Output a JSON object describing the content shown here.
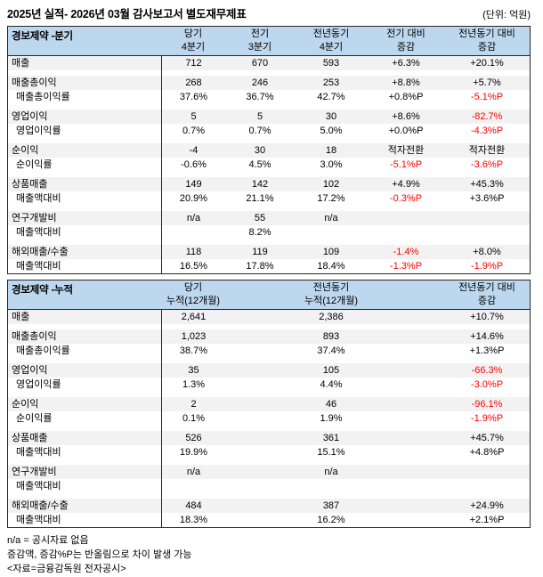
{
  "title": "2025년 실적- 2026년 03월 감사보고서 별도재무제표",
  "unit_label": "(단위: 억원)",
  "colors": {
    "header_bg": "#BDD7EE",
    "shaded_row_bg": "#F2F2F2",
    "negative_text": "#FF0000",
    "border": "#262626"
  },
  "quarterly_table": {
    "corner_label": "경보제약 -분기",
    "grid_slots": [
      0,
      1,
      2,
      3,
      4
    ],
    "column_headers": [
      {
        "line1": "당기",
        "line2": "4분기"
      },
      {
        "line1": "전기",
        "line2": "3분기"
      },
      {
        "line1": "전년동기",
        "line2": "4분기"
      },
      {
        "line1": "전기 대비",
        "line2": "증감"
      },
      {
        "line1": "전년동기 대비",
        "line2": "증감"
      }
    ],
    "groups": [
      [
        {
          "label": "매출",
          "sub": false,
          "cells": [
            "712",
            "670",
            "593",
            "+6.3%",
            "+20.1%"
          ],
          "neg": []
        }
      ],
      [
        {
          "label": "매출총이익",
          "sub": false,
          "cells": [
            "268",
            "246",
            "253",
            "+8.8%",
            "+5.7%"
          ],
          "neg": []
        },
        {
          "label": "매출총이익률",
          "sub": true,
          "cells": [
            "37.6%",
            "36.7%",
            "42.7%",
            "+0.8%P",
            "-5.1%P"
          ],
          "neg": [
            4
          ]
        }
      ],
      [
        {
          "label": "영업이익",
          "sub": false,
          "cells": [
            "5",
            "5",
            "30",
            "+8.6%",
            "-82.7%"
          ],
          "neg": [
            4
          ]
        },
        {
          "label": "영업이익률",
          "sub": true,
          "cells": [
            "0.7%",
            "0.7%",
            "5.0%",
            "+0.0%P",
            "-4.3%P"
          ],
          "neg": [
            4
          ]
        }
      ],
      [
        {
          "label": "순이익",
          "sub": false,
          "cells": [
            "-4",
            "30",
            "18",
            "적자전환",
            "적자전환"
          ],
          "neg": []
        },
        {
          "label": "순이익률",
          "sub": true,
          "cells": [
            "-0.6%",
            "4.5%",
            "3.0%",
            "-5.1%P",
            "-3.6%P"
          ],
          "neg": [
            3,
            4
          ]
        }
      ],
      [
        {
          "label": "상품매출",
          "sub": false,
          "cells": [
            "149",
            "142",
            "102",
            "+4.9%",
            "+45.3%"
          ],
          "neg": []
        },
        {
          "label": "매출액대비",
          "sub": true,
          "cells": [
            "20.9%",
            "21.1%",
            "17.2%",
            "-0.3%P",
            "+3.6%P"
          ],
          "neg": [
            3
          ]
        }
      ],
      [
        {
          "label": "연구개발비",
          "sub": false,
          "cells": [
            "n/a",
            "55",
            "n/a",
            "",
            ""
          ],
          "neg": []
        },
        {
          "label": "매출액대비",
          "sub": true,
          "cells": [
            "",
            "8.2%",
            "",
            "",
            ""
          ],
          "neg": []
        }
      ],
      [
        {
          "label": "해외매출/수출",
          "sub": false,
          "cells": [
            "118",
            "119",
            "109",
            "-1.4%",
            "+8.0%"
          ],
          "neg": [
            3
          ]
        },
        {
          "label": "매출액대비",
          "sub": true,
          "cells": [
            "16.5%",
            "17.8%",
            "18.4%",
            "-1.3%P",
            "-1.9%P"
          ],
          "neg": [
            3,
            4
          ]
        }
      ]
    ]
  },
  "cumulative_table": {
    "corner_label": "경보제약 -누적",
    "grid_slots": [
      0,
      2,
      4
    ],
    "column_headers": [
      {
        "line1": "당기",
        "line2": "누적(12개월)"
      },
      {
        "line1": "전년동기",
        "line2": "누적(12개월)"
      },
      {
        "line1": "전년동기 대비",
        "line2": "증감"
      }
    ],
    "groups": [
      [
        {
          "label": "매출",
          "sub": false,
          "cells": [
            "2,641",
            "2,386",
            "+10.7%"
          ],
          "neg": []
        }
      ],
      [
        {
          "label": "매출총이익",
          "sub": false,
          "cells": [
            "1,023",
            "893",
            "+14.6%"
          ],
          "neg": []
        },
        {
          "label": "매출총이익률",
          "sub": true,
          "cells": [
            "38.7%",
            "37.4%",
            "+1.3%P"
          ],
          "neg": []
        }
      ],
      [
        {
          "label": "영업이익",
          "sub": false,
          "cells": [
            "35",
            "105",
            "-66.3%"
          ],
          "neg": [
            2
          ]
        },
        {
          "label": "영업이익률",
          "sub": true,
          "cells": [
            "1.3%",
            "4.4%",
            "-3.0%P"
          ],
          "neg": [
            2
          ]
        }
      ],
      [
        {
          "label": "순이익",
          "sub": false,
          "cells": [
            "2",
            "46",
            "-96.1%"
          ],
          "neg": [
            2
          ]
        },
        {
          "label": "순이익률",
          "sub": true,
          "cells": [
            "0.1%",
            "1.9%",
            "-1.9%P"
          ],
          "neg": [
            2
          ]
        }
      ],
      [
        {
          "label": "상품매출",
          "sub": false,
          "cells": [
            "526",
            "361",
            "+45.7%"
          ],
          "neg": []
        },
        {
          "label": "매출액대비",
          "sub": true,
          "cells": [
            "19.9%",
            "15.1%",
            "+4.8%P"
          ],
          "neg": []
        }
      ],
      [
        {
          "label": "연구개발비",
          "sub": false,
          "cells": [
            "n/a",
            "n/a",
            ""
          ],
          "neg": []
        },
        {
          "label": "매출액대비",
          "sub": true,
          "cells": [
            "",
            "",
            ""
          ],
          "neg": []
        }
      ],
      [
        {
          "label": "해외매출/수출",
          "sub": false,
          "cells": [
            "484",
            "387",
            "+24.9%"
          ],
          "neg": []
        },
        {
          "label": "매출액대비",
          "sub": true,
          "cells": [
            "18.3%",
            "16.2%",
            "+2.1%P"
          ],
          "neg": []
        }
      ]
    ]
  },
  "footnotes": [
    "n/a = 공시자료 없음",
    "증감액, 증감%P는 반올림으로 차이 발생 가능",
    "<자료=금융감독원 전자공시>"
  ]
}
